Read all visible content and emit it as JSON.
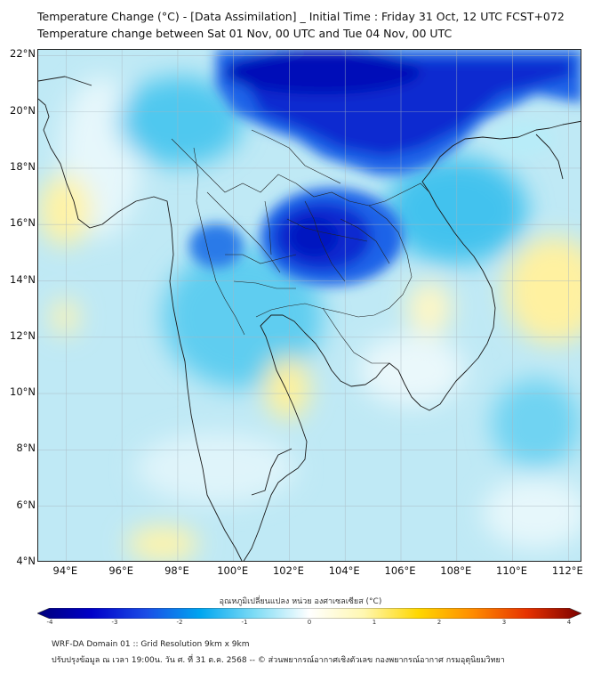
{
  "title": {
    "line1": "Temperature Change (°C) - [Data Assimilation] _ Initial Time : Friday 31 Oct, 12 UTC FCST+072",
    "line2": "Temperature change between Sat 01 Nov, 00 UTC and Tue 04 Nov, 00 UTC"
  },
  "map": {
    "lat_labels": [
      "22°N",
      "20°N",
      "18°N",
      "16°N",
      "14°N",
      "12°N",
      "10°N",
      "8°N",
      "6°N",
      "4°N"
    ],
    "lon_labels": [
      "94°E",
      "96°E",
      "98°E",
      "100°E",
      "102°E",
      "104°E",
      "106°E",
      "108°E",
      "110°E",
      "112°E"
    ],
    "lat_range": [
      4,
      22.2
    ],
    "lon_range": [
      93,
      112.5
    ]
  },
  "colorbar": {
    "title": "อุณหภูมิเปลี่ยนแปลง หน่วย องศาเซลเซียส (°C)",
    "ticks": [
      "-4",
      "-3",
      "-2",
      "-1",
      "0",
      "1",
      "2",
      "3",
      "4"
    ],
    "range": [
      -4,
      4
    ],
    "colors": [
      "#00007a",
      "#0000c8",
      "#1a4de6",
      "#00a6f0",
      "#7fdcf5",
      "#ffffff",
      "#fff7b0",
      "#ffd700",
      "#ff8c00",
      "#e63200",
      "#7a0000"
    ]
  },
  "footer": {
    "line1": "WRF-DA Domain 01 :: Grid Resolution 9km x 9km",
    "line2": "ปรับปรุงข้อมูล ณ เวลา 19:00น. วัน ศ. ที่ 31 ต.ค. 2568 -- © ส่วนพยากรณ์อากาศเชิงตัวเลข กองพยากรณ์อากาศ กรมอุตุนิยมวิทยา"
  }
}
